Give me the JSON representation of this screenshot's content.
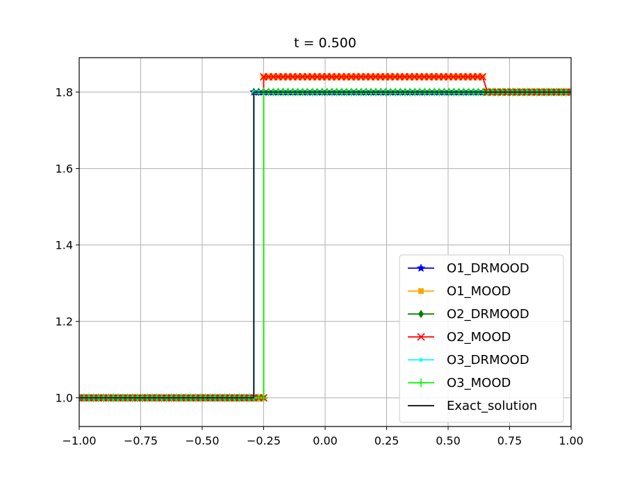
{
  "chart_data": {
    "type": "line",
    "title": "t = 0.500",
    "xlabel": "",
    "ylabel": "",
    "xlim": [
      -1.0,
      1.0
    ],
    "ylim": [
      0.925,
      1.89
    ],
    "grid": true,
    "legend_position": "lower-right",
    "x_ticks": [
      {
        "value": -1.0,
        "label": "−1.00"
      },
      {
        "value": -0.75,
        "label": "−0.75"
      },
      {
        "value": -0.5,
        "label": "−0.50"
      },
      {
        "value": -0.25,
        "label": "−0.25"
      },
      {
        "value": 0.0,
        "label": "0.00"
      },
      {
        "value": 0.25,
        "label": "0.25"
      },
      {
        "value": 0.5,
        "label": "0.50"
      },
      {
        "value": 0.75,
        "label": "0.75"
      },
      {
        "value": 1.0,
        "label": "1.00"
      }
    ],
    "y_ticks": [
      {
        "value": 1.0,
        "label": "1.0"
      },
      {
        "value": 1.2,
        "label": "1.2"
      },
      {
        "value": 1.4,
        "label": "1.4"
      },
      {
        "value": 1.6,
        "label": "1.6"
      },
      {
        "value": 1.8,
        "label": "1.8"
      }
    ],
    "series": [
      {
        "name": "O1_DRMOOD",
        "color": "#0000ff",
        "marker": "star",
        "segments": [
          {
            "x0": -1.0,
            "x1": -0.29,
            "y": 1.0
          },
          {
            "x0": -0.29,
            "x1": 1.0,
            "y": 1.8
          }
        ]
      },
      {
        "name": "O1_MOOD",
        "color": "#ffa500",
        "marker": "square",
        "segments": [
          {
            "x0": -1.0,
            "x1": -0.25,
            "y": 1.0
          },
          {
            "x0": -0.25,
            "x1": 0.64,
            "y": 1.84
          },
          {
            "x0": 0.66,
            "x1": 1.0,
            "y": 1.8
          }
        ]
      },
      {
        "name": "O2_DRMOOD",
        "color": "#008000",
        "marker": "diamond",
        "segments": [
          {
            "x0": -1.0,
            "x1": -0.29,
            "y": 1.0
          },
          {
            "x0": -0.29,
            "x1": 1.0,
            "y": 1.8
          }
        ]
      },
      {
        "name": "O2_MOOD",
        "color": "#ff0000",
        "marker": "x",
        "segments": [
          {
            "x0": -1.0,
            "x1": -0.25,
            "y": 1.0
          },
          {
            "x0": -0.25,
            "x1": 0.64,
            "y": 1.84
          },
          {
            "x0": 0.66,
            "x1": 1.0,
            "y": 1.8
          }
        ]
      },
      {
        "name": "O3_DRMOOD",
        "color": "#00ffff",
        "marker": "point",
        "segments": [
          {
            "x0": -1.0,
            "x1": -0.29,
            "y": 1.0
          },
          {
            "x0": -0.29,
            "x1": 1.0,
            "y": 1.8
          }
        ]
      },
      {
        "name": "O3_MOOD",
        "color": "#00ff00",
        "marker": "plus",
        "segments": [
          {
            "x0": -1.0,
            "x1": -0.25,
            "y": 1.0
          },
          {
            "x0": -0.25,
            "x1": 1.0,
            "y": 1.8
          }
        ]
      },
      {
        "name": "Exact_solution",
        "color": "#000000",
        "marker": "none",
        "segments": [
          {
            "x0": -1.0,
            "x1": -0.29,
            "y": 1.0
          },
          {
            "x0": -0.29,
            "x1": 1.0,
            "y": 1.8
          }
        ]
      }
    ]
  }
}
